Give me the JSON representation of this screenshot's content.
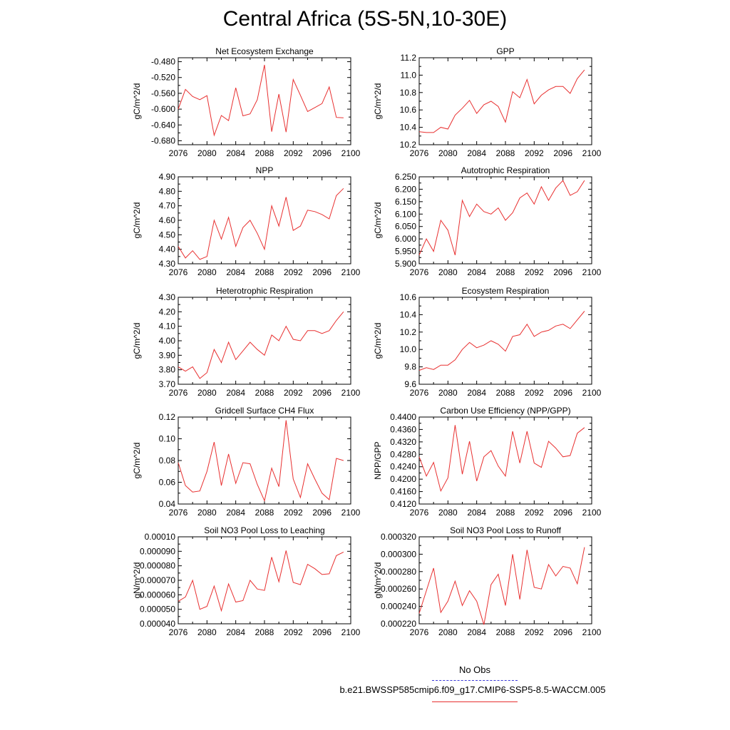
{
  "title": "Central Africa (5S-5N,10-30E)",
  "legend": {
    "obs_label": "No Obs",
    "obs_color": "#3a3ad8",
    "run_label": "b.e21.BWSSP585cmip6.f09_g17.CMIP6-SSP5-8.5-WACCM.005",
    "run_color": "#e83030"
  },
  "chart_data": [
    {
      "type": "line",
      "title": "Net Ecosystem Exchange",
      "ylabel": "gC/m^2/d",
      "xlim": [
        2076,
        2100
      ],
      "ylim": [
        -0.69,
        -0.47
      ],
      "yticks": [
        -0.68,
        -0.64,
        -0.6,
        -0.56,
        -0.52,
        -0.48
      ],
      "ytick_labels": [
        "-0.680",
        "-0.640",
        "-0.600",
        "-0.560",
        "-0.520",
        "-0.480"
      ],
      "xticks": [
        2076,
        2080,
        2084,
        2088,
        2092,
        2096,
        2100
      ],
      "x": [
        2076,
        2077,
        2078,
        2079,
        2080,
        2081,
        2082,
        2083,
        2084,
        2085,
        2086,
        2087,
        2088,
        2089,
        2090,
        2091,
        2092,
        2093,
        2094,
        2095,
        2096,
        2097,
        2098,
        2099
      ],
      "series": [
        {
          "color": "#e83030",
          "values": [
            -0.6,
            -0.55,
            -0.568,
            -0.576,
            -0.566,
            -0.666,
            -0.616,
            -0.629,
            -0.546,
            -0.617,
            -0.612,
            -0.576,
            -0.488,
            -0.657,
            -0.562,
            -0.658,
            -0.525,
            -0.565,
            -0.606,
            -0.596,
            -0.586,
            -0.544,
            -0.621,
            -0.622
          ]
        }
      ]
    },
    {
      "type": "line",
      "title": "GPP",
      "ylabel": "gC/m^2/d",
      "xlim": [
        2076,
        2100
      ],
      "ylim": [
        10.2,
        11.2
      ],
      "yticks": [
        10.2,
        10.4,
        10.6,
        10.8,
        11.0,
        11.2
      ],
      "ytick_labels": [
        "10.2",
        "10.4",
        "10.6",
        "10.8",
        "11.0",
        "11.2"
      ],
      "xticks": [
        2076,
        2080,
        2084,
        2088,
        2092,
        2096,
        2100
      ],
      "x": [
        2076,
        2077,
        2078,
        2079,
        2080,
        2081,
        2082,
        2083,
        2084,
        2085,
        2086,
        2087,
        2088,
        2089,
        2090,
        2091,
        2092,
        2093,
        2094,
        2095,
        2096,
        2097,
        2098,
        2099
      ],
      "series": [
        {
          "color": "#e83030",
          "values": [
            10.35,
            10.34,
            10.34,
            10.4,
            10.38,
            10.54,
            10.62,
            10.71,
            10.56,
            10.66,
            10.7,
            10.64,
            10.46,
            10.81,
            10.74,
            10.95,
            10.67,
            10.77,
            10.83,
            10.87,
            10.87,
            10.79,
            10.96,
            11.06
          ]
        }
      ]
    },
    {
      "type": "line",
      "title": "NPP",
      "ylabel": "gC/m^2/d",
      "xlim": [
        2076,
        2100
      ],
      "ylim": [
        4.3,
        4.9
      ],
      "yticks": [
        4.3,
        4.4,
        4.5,
        4.6,
        4.7,
        4.8,
        4.9
      ],
      "ytick_labels": [
        "4.30",
        "4.40",
        "4.50",
        "4.60",
        "4.70",
        "4.80",
        "4.90"
      ],
      "xticks": [
        2076,
        2080,
        2084,
        2088,
        2092,
        2096,
        2100
      ],
      "x": [
        2076,
        2077,
        2078,
        2079,
        2080,
        2081,
        2082,
        2083,
        2084,
        2085,
        2086,
        2087,
        2088,
        2089,
        2090,
        2091,
        2092,
        2093,
        2094,
        2095,
        2096,
        2097,
        2098,
        2099
      ],
      "series": [
        {
          "color": "#e83030",
          "values": [
            4.42,
            4.34,
            4.39,
            4.33,
            4.35,
            4.6,
            4.47,
            4.62,
            4.42,
            4.55,
            4.6,
            4.51,
            4.4,
            4.7,
            4.56,
            4.76,
            4.53,
            4.56,
            4.67,
            4.66,
            4.64,
            4.61,
            4.77,
            4.82
          ]
        }
      ]
    },
    {
      "type": "line",
      "title": "Autotrophic Respiration",
      "ylabel": "gC/m^2/d",
      "xlim": [
        2076,
        2100
      ],
      "ylim": [
        5.9,
        6.25
      ],
      "yticks": [
        5.9,
        5.95,
        6.0,
        6.05,
        6.1,
        6.15,
        6.2,
        6.25
      ],
      "ytick_labels": [
        "5.900",
        "5.950",
        "6.000",
        "6.050",
        "6.100",
        "6.150",
        "6.200",
        "6.250"
      ],
      "xticks": [
        2076,
        2080,
        2084,
        2088,
        2092,
        2096,
        2100
      ],
      "x": [
        2076,
        2077,
        2078,
        2079,
        2080,
        2081,
        2082,
        2083,
        2084,
        2085,
        2086,
        2087,
        2088,
        2089,
        2090,
        2091,
        2092,
        2093,
        2094,
        2095,
        2096,
        2097,
        2098,
        2099
      ],
      "series": [
        {
          "color": "#e83030",
          "values": [
            5.935,
            6.0,
            5.95,
            6.075,
            6.035,
            5.935,
            6.155,
            6.09,
            6.14,
            6.11,
            6.1,
            6.125,
            6.075,
            6.105,
            6.165,
            6.185,
            6.14,
            6.21,
            6.155,
            6.205,
            6.235,
            6.175,
            6.19,
            6.235
          ]
        }
      ]
    },
    {
      "type": "line",
      "title": "Heterotrophic Respiration",
      "ylabel": "gC/m^2/d",
      "xlim": [
        2076,
        2100
      ],
      "ylim": [
        3.7,
        4.3
      ],
      "yticks": [
        3.7,
        3.8,
        3.9,
        4.0,
        4.1,
        4.2,
        4.3
      ],
      "ytick_labels": [
        "3.70",
        "3.80",
        "3.90",
        "4.00",
        "4.10",
        "4.20",
        "4.30"
      ],
      "xticks": [
        2076,
        2080,
        2084,
        2088,
        2092,
        2096,
        2100
      ],
      "x": [
        2076,
        2077,
        2078,
        2079,
        2080,
        2081,
        2082,
        2083,
        2084,
        2085,
        2086,
        2087,
        2088,
        2089,
        2090,
        2091,
        2092,
        2093,
        2094,
        2095,
        2096,
        2097,
        2098,
        2099
      ],
      "series": [
        {
          "color": "#e83030",
          "values": [
            3.82,
            3.79,
            3.82,
            3.74,
            3.78,
            3.94,
            3.85,
            3.99,
            3.87,
            3.93,
            3.99,
            3.94,
            3.9,
            4.04,
            4.0,
            4.1,
            4.01,
            4.0,
            4.07,
            4.07,
            4.05,
            4.07,
            4.14,
            4.2
          ]
        }
      ]
    },
    {
      "type": "line",
      "title": "Ecosystem Respiration",
      "ylabel": "gC/m^2/d",
      "xlim": [
        2076,
        2100
      ],
      "ylim": [
        9.6,
        10.6
      ],
      "yticks": [
        9.6,
        9.8,
        10.0,
        10.2,
        10.4,
        10.6
      ],
      "ytick_labels": [
        "9.6",
        "9.8",
        "10.0",
        "10.2",
        "10.4",
        "10.6"
      ],
      "xticks": [
        2076,
        2080,
        2084,
        2088,
        2092,
        2096,
        2100
      ],
      "x": [
        2076,
        2077,
        2078,
        2079,
        2080,
        2081,
        2082,
        2083,
        2084,
        2085,
        2086,
        2087,
        2088,
        2089,
        2090,
        2091,
        2092,
        2093,
        2094,
        2095,
        2096,
        2097,
        2098,
        2099
      ],
      "series": [
        {
          "color": "#e83030",
          "values": [
            9.76,
            9.79,
            9.77,
            9.82,
            9.82,
            9.88,
            10.0,
            10.08,
            10.02,
            10.05,
            10.1,
            10.06,
            9.98,
            10.15,
            10.17,
            10.29,
            10.15,
            10.2,
            10.22,
            10.27,
            10.29,
            10.24,
            10.34,
            10.44
          ]
        }
      ]
    },
    {
      "type": "line",
      "title": "Gridcell Surface CH4 Flux",
      "ylabel": "gC/m^2/d",
      "xlim": [
        2076,
        2100
      ],
      "ylim": [
        0.04,
        0.12
      ],
      "yticks": [
        0.04,
        0.06,
        0.08,
        0.1,
        0.12
      ],
      "ytick_labels": [
        "0.04",
        "0.06",
        "0.08",
        "0.10",
        "0.12"
      ],
      "xticks": [
        2076,
        2080,
        2084,
        2088,
        2092,
        2096,
        2100
      ],
      "x": [
        2076,
        2077,
        2078,
        2079,
        2080,
        2081,
        2082,
        2083,
        2084,
        2085,
        2086,
        2087,
        2088,
        2089,
        2090,
        2091,
        2092,
        2093,
        2094,
        2095,
        2096,
        2097,
        2098,
        2099
      ],
      "series": [
        {
          "color": "#e83030",
          "values": [
            0.078,
            0.057,
            0.051,
            0.052,
            0.07,
            0.097,
            0.057,
            0.086,
            0.059,
            0.078,
            0.077,
            0.058,
            0.043,
            0.073,
            0.056,
            0.117,
            0.063,
            0.046,
            0.077,
            0.063,
            0.05,
            0.044,
            0.082,
            0.08
          ]
        }
      ]
    },
    {
      "type": "line",
      "title": "Carbon Use Efficiency (NPP/GPP)",
      "ylabel": "NPP/GPP",
      "xlim": [
        2076,
        2100
      ],
      "ylim": [
        0.412,
        0.44
      ],
      "yticks": [
        0.412,
        0.416,
        0.42,
        0.424,
        0.428,
        0.432,
        0.436,
        0.44
      ],
      "ytick_labels": [
        "0.4120",
        "0.4160",
        "0.4200",
        "0.4240",
        "0.4280",
        "0.4320",
        "0.4360",
        "0.4400"
      ],
      "xticks": [
        2076,
        2080,
        2084,
        2088,
        2092,
        2096,
        2100
      ],
      "x": [
        2076,
        2077,
        2078,
        2079,
        2080,
        2081,
        2082,
        2083,
        2084,
        2085,
        2086,
        2087,
        2088,
        2089,
        2090,
        2091,
        2092,
        2093,
        2094,
        2095,
        2096,
        2097,
        2098,
        2099
      ],
      "series": [
        {
          "color": "#e83030",
          "values": [
            0.4272,
            0.421,
            0.4254,
            0.4162,
            0.4204,
            0.4374,
            0.4216,
            0.4322,
            0.4194,
            0.4272,
            0.4292,
            0.4242,
            0.421,
            0.4354,
            0.4252,
            0.4354,
            0.4252,
            0.4238,
            0.4322,
            0.43,
            0.4272,
            0.4276,
            0.4348,
            0.4366
          ]
        }
      ]
    },
    {
      "type": "line",
      "title": "Soil NO3 Pool Loss to Leaching",
      "ylabel": "gN/m^2/d",
      "xlim": [
        2076,
        2100
      ],
      "ylim": [
        4e-05,
        0.0001
      ],
      "yticks": [
        4e-05,
        5e-05,
        6e-05,
        7e-05,
        8e-05,
        9e-05,
        0.0001
      ],
      "ytick_labels": [
        "0.000040",
        "0.000050",
        "0.000060",
        "0.000070",
        "0.000080",
        "0.000090",
        "0.00010"
      ],
      "xticks": [
        2076,
        2080,
        2084,
        2088,
        2092,
        2096,
        2100
      ],
      "x": [
        2076,
        2077,
        2078,
        2079,
        2080,
        2081,
        2082,
        2083,
        2084,
        2085,
        2086,
        2087,
        2088,
        2089,
        2090,
        2091,
        2092,
        2093,
        2094,
        2095,
        2096,
        2097,
        2098,
        2099
      ],
      "series": [
        {
          "color": "#e83030",
          "values": [
            5.55e-05,
            5.85e-05,
            7e-05,
            5e-05,
            5.2e-05,
            6.6e-05,
            4.9e-05,
            6.75e-05,
            5.5e-05,
            5.6e-05,
            7e-05,
            6.4e-05,
            6.3e-05,
            8.6e-05,
            6.9e-05,
            9.05e-05,
            6.85e-05,
            6.7e-05,
            8.1e-05,
            7.8e-05,
            7.4e-05,
            7.45e-05,
            8.7e-05,
            8.95e-05
          ]
        }
      ]
    },
    {
      "type": "line",
      "title": "Soil NO3 Pool Loss to Runoff",
      "ylabel": "gN/m^2/d",
      "xlim": [
        2076,
        2100
      ],
      "ylim": [
        0.00022,
        0.00032
      ],
      "yticks": [
        0.00022,
        0.00024,
        0.00026,
        0.00028,
        0.0003,
        0.00032
      ],
      "ytick_labels": [
        "0.000220",
        "0.000240",
        "0.000260",
        "0.000280",
        "0.000300",
        "0.000320"
      ],
      "xticks": [
        2076,
        2080,
        2084,
        2088,
        2092,
        2096,
        2100
      ],
      "x": [
        2076,
        2077,
        2078,
        2079,
        2080,
        2081,
        2082,
        2083,
        2084,
        2085,
        2086,
        2087,
        2088,
        2089,
        2090,
        2091,
        2092,
        2093,
        2094,
        2095,
        2096,
        2097,
        2098,
        2099
      ],
      "series": [
        {
          "color": "#e83030",
          "values": [
            0.000232,
            0.000258,
            0.000284,
            0.000233,
            0.000246,
            0.000269,
            0.000241,
            0.000258,
            0.000246,
            0.000219,
            0.000265,
            0.000277,
            0.000241,
            0.0003,
            0.000248,
            0.000305,
            0.000262,
            0.00026,
            0.000288,
            0.000275,
            0.000286,
            0.000284,
            0.000266,
            0.000308
          ]
        }
      ]
    }
  ]
}
